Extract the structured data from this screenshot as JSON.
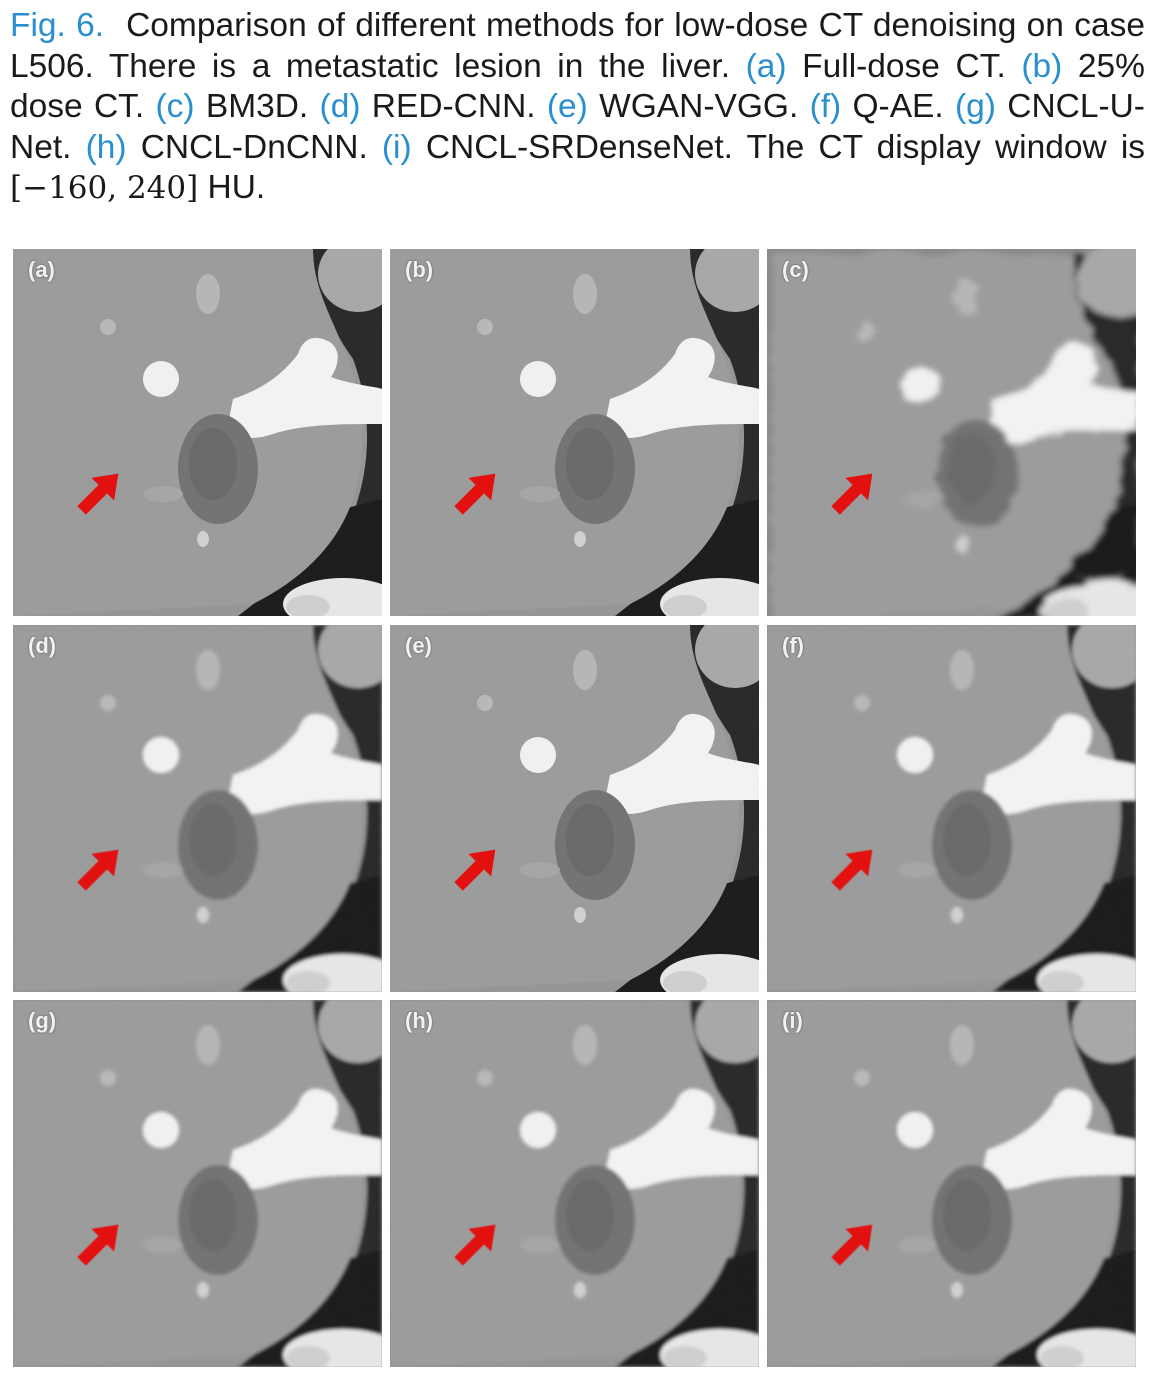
{
  "caption": {
    "fig_label": "Fig. 6.",
    "text_1": "Comparison of different methods for low-dose CT denoising on case L506. There is a metastatic lesion in the liver.",
    "items": [
      {
        "ref": "(a)",
        "text": "Full-dose CT."
      },
      {
        "ref": "(b)",
        "text": "25% dose CT."
      },
      {
        "ref": "(c)",
        "text": "BM3D."
      },
      {
        "ref": "(d)",
        "text": "RED-CNN."
      },
      {
        "ref": "(e)",
        "text": "WGAN-VGG."
      },
      {
        "ref": "(f)",
        "text": "Q-AE."
      },
      {
        "ref": "(g)",
        "text": "CNCL-U-Net."
      },
      {
        "ref": "(h)",
        "text": "CNCL-DnCNN."
      },
      {
        "ref": "(i)",
        "text": "CNCL-SRDenseNet."
      }
    ],
    "text_2": "The CT display window is",
    "window": "[−160, 240]",
    "unit": "HU."
  },
  "panels": [
    {
      "label": "(a)",
      "noise": "medium",
      "blur": "none"
    },
    {
      "label": "(b)",
      "noise": "high",
      "blur": "none"
    },
    {
      "label": "(c)",
      "noise": "none",
      "blur": "heavy"
    },
    {
      "label": "(d)",
      "noise": "low",
      "blur": "light"
    },
    {
      "label": "(e)",
      "noise": "medium",
      "blur": "none"
    },
    {
      "label": "(f)",
      "noise": "low",
      "blur": "light"
    },
    {
      "label": "(g)",
      "noise": "low",
      "blur": "light"
    },
    {
      "label": "(h)",
      "noise": "low",
      "blur": "light"
    },
    {
      "label": "(i)",
      "noise": "low",
      "blur": "light"
    }
  ],
  "colors": {
    "link": "#2a8fd0",
    "arrow": "#e31010"
  }
}
